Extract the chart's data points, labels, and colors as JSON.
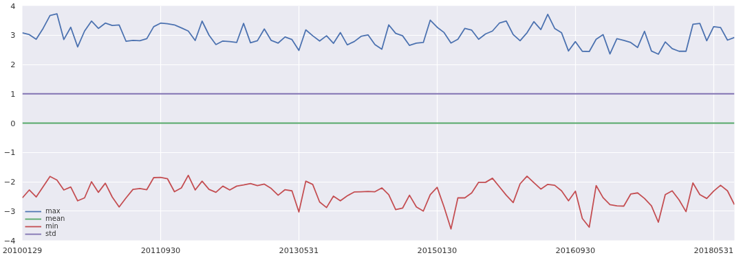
{
  "chart_data": {
    "type": "line",
    "categories": [
      "20100129",
      null,
      null,
      null,
      null,
      null,
      null,
      null,
      null,
      null,
      null,
      null,
      null,
      null,
      null,
      null,
      null,
      null,
      null,
      null,
      "20110930",
      null,
      null,
      null,
      null,
      null,
      null,
      null,
      null,
      null,
      null,
      null,
      null,
      null,
      null,
      null,
      null,
      null,
      null,
      null,
      "20130531",
      null,
      null,
      null,
      null,
      null,
      null,
      null,
      null,
      null,
      null,
      null,
      null,
      null,
      null,
      null,
      null,
      null,
      null,
      null,
      "20150130",
      null,
      null,
      null,
      null,
      null,
      null,
      null,
      null,
      null,
      null,
      null,
      null,
      null,
      null,
      null,
      null,
      null,
      null,
      null,
      "20160930",
      null,
      null,
      null,
      null,
      null,
      null,
      null,
      null,
      null,
      null,
      null,
      null,
      null,
      null,
      null,
      null,
      null,
      null,
      null,
      "20180531",
      null,
      null,
      null
    ],
    "series": [
      {
        "name": "max",
        "color": "#4c72b0",
        "values": [
          3.08,
          3.02,
          2.86,
          3.23,
          3.67,
          3.73,
          2.85,
          3.27,
          2.6,
          3.14,
          3.48,
          3.23,
          3.41,
          3.33,
          3.35,
          2.79,
          2.82,
          2.81,
          2.88,
          3.29,
          3.41,
          3.39,
          3.35,
          3.25,
          3.14,
          2.82,
          3.48,
          3.0,
          2.68,
          2.8,
          2.78,
          2.75,
          3.4,
          2.74,
          2.81,
          3.21,
          2.82,
          2.73,
          2.94,
          2.85,
          2.48,
          3.18,
          2.98,
          2.8,
          2.98,
          2.72,
          3.09,
          2.67,
          2.78,
          2.96,
          3.01,
          2.68,
          2.52,
          3.35,
          3.06,
          2.98,
          2.65,
          2.73,
          2.75,
          3.51,
          3.27,
          3.09,
          2.73,
          2.86,
          3.23,
          3.17,
          2.86,
          3.04,
          3.14,
          3.41,
          3.48,
          3.02,
          2.81,
          3.08,
          3.46,
          3.19,
          3.71,
          3.23,
          3.08,
          2.46,
          2.78,
          2.45,
          2.44,
          2.86,
          3.02,
          2.36,
          2.88,
          2.82,
          2.75,
          2.58,
          3.13,
          2.46,
          2.35,
          2.77,
          2.54,
          2.45,
          2.45,
          3.37,
          3.4,
          2.81,
          3.29,
          3.26,
          2.83,
          2.92
        ]
      },
      {
        "name": "mean",
        "color": "#55a868",
        "values": [
          0,
          0,
          0,
          0,
          0,
          0,
          0,
          0,
          0,
          0,
          0,
          0,
          0,
          0,
          0,
          0,
          0,
          0,
          0,
          0,
          0,
          0,
          0,
          0,
          0,
          0,
          0,
          0,
          0,
          0,
          0,
          0,
          0,
          0,
          0,
          0,
          0,
          0,
          0,
          0,
          0,
          0,
          0,
          0,
          0,
          0,
          0,
          0,
          0,
          0,
          0,
          0,
          0,
          0,
          0,
          0,
          0,
          0,
          0,
          0,
          0,
          0,
          0,
          0,
          0,
          0,
          0,
          0,
          0,
          0,
          0,
          0,
          0,
          0,
          0,
          0,
          0,
          0,
          0,
          0,
          0,
          0,
          0,
          0,
          0,
          0,
          0,
          0,
          0,
          0,
          0,
          0,
          0,
          0,
          0,
          0,
          0,
          0,
          0,
          0,
          0,
          0,
          0,
          0
        ]
      },
      {
        "name": "min",
        "color": "#c44e52",
        "values": [
          -2.55,
          -2.28,
          -2.52,
          -2.17,
          -1.82,
          -1.94,
          -2.28,
          -2.18,
          -2.65,
          -2.55,
          -2.0,
          -2.36,
          -2.05,
          -2.52,
          -2.86,
          -2.55,
          -2.26,
          -2.23,
          -2.27,
          -1.86,
          -1.85,
          -1.9,
          -2.34,
          -2.21,
          -1.78,
          -2.28,
          -1.98,
          -2.26,
          -2.36,
          -2.15,
          -2.28,
          -2.15,
          -2.11,
          -2.06,
          -2.13,
          -2.08,
          -2.23,
          -2.46,
          -2.27,
          -2.31,
          -3.03,
          -1.98,
          -2.09,
          -2.69,
          -2.88,
          -2.49,
          -2.65,
          -2.48,
          -2.35,
          -2.34,
          -2.33,
          -2.34,
          -2.21,
          -2.44,
          -2.95,
          -2.9,
          -2.46,
          -2.86,
          -3.0,
          -2.44,
          -2.19,
          -2.86,
          -3.61,
          -2.55,
          -2.55,
          -2.38,
          -2.02,
          -2.02,
          -1.88,
          -2.17,
          -2.46,
          -2.71,
          -2.07,
          -1.81,
          -2.03,
          -2.25,
          -2.09,
          -2.12,
          -2.31,
          -2.65,
          -2.32,
          -3.25,
          -3.55,
          -2.13,
          -2.54,
          -2.78,
          -2.82,
          -2.83,
          -2.42,
          -2.38,
          -2.57,
          -2.82,
          -3.38,
          -2.44,
          -2.31,
          -2.62,
          -3.02,
          -2.04,
          -2.44,
          -2.57,
          -2.32,
          -2.12,
          -2.31,
          -2.78
        ]
      },
      {
        "name": "std",
        "color": "#8172b2",
        "values": [
          1,
          1,
          1,
          1,
          1,
          1,
          1,
          1,
          1,
          1,
          1,
          1,
          1,
          1,
          1,
          1,
          1,
          1,
          1,
          1,
          1,
          1,
          1,
          1,
          1,
          1,
          1,
          1,
          1,
          1,
          1,
          1,
          1,
          1,
          1,
          1,
          1,
          1,
          1,
          1,
          1,
          1,
          1,
          1,
          1,
          1,
          1,
          1,
          1,
          1,
          1,
          1,
          1,
          1,
          1,
          1,
          1,
          1,
          1,
          1,
          1,
          1,
          1,
          1,
          1,
          1,
          1,
          1,
          1,
          1,
          1,
          1,
          1,
          1,
          1,
          1,
          1,
          1,
          1,
          1,
          1,
          1,
          1,
          1,
          1,
          1,
          1,
          1,
          1,
          1,
          1,
          1,
          1,
          1,
          1,
          1,
          1,
          1,
          1,
          1,
          1,
          1,
          1,
          1
        ]
      }
    ],
    "ylim": [
      -4,
      4
    ],
    "yticks": [
      {
        "value": -4,
        "label": "−4"
      },
      {
        "value": -3,
        "label": "−3"
      },
      {
        "value": -2,
        "label": "−2"
      },
      {
        "value": -1,
        "label": "−1"
      },
      0,
      1,
      2,
      3,
      4
    ],
    "grid": true,
    "legend": "bottom left",
    "marker": "none",
    "line_style": "solid"
  }
}
